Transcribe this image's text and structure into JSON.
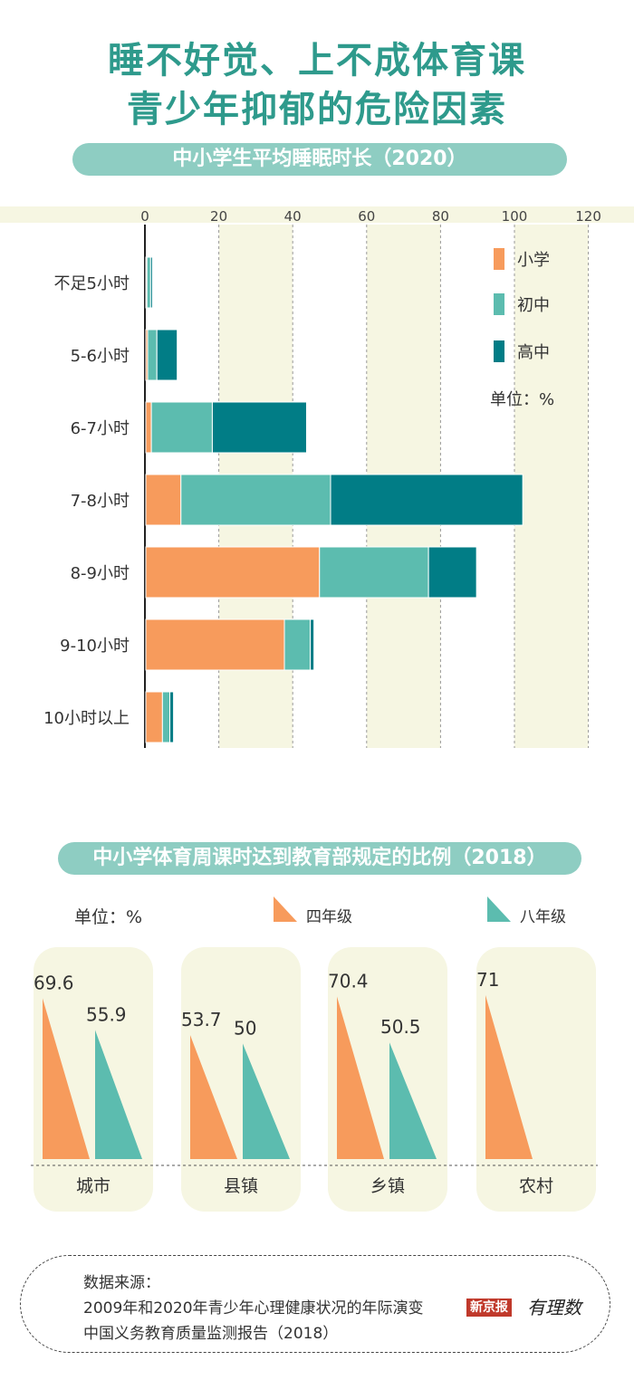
{
  "title": {
    "line1": "睡不好觉、上不成体育课",
    "line2": "青少年抑郁的危险因素"
  },
  "colors": {
    "title": "#2e9a8c",
    "pill": "#8ecdc2",
    "band": "#f6f6e2",
    "primary": "#f79b5c",
    "junior": "#5cbcaf",
    "senior": "#017d86",
    "grade4": "#f79b5c",
    "grade8": "#5cbcaf",
    "panel": "#f6f6e2"
  },
  "chart_data": [
    {
      "type": "bar",
      "orientation": "horizontal",
      "stacked": true,
      "title": "中小学生平均睡眠时长（2020）",
      "unit": "单位：%",
      "xlim": [
        0,
        120
      ],
      "xticks": [
        0,
        20,
        40,
        60,
        80,
        100,
        120
      ],
      "categories": [
        "不足5小时",
        "5-6小时",
        "6-7小时",
        "7-8小时",
        "8-9小时",
        "9-10小时",
        "10小时以上"
      ],
      "series": [
        {
          "name": "小学",
          "values": [
            0.3,
            0.5,
            1.5,
            9.5,
            47,
            37.5,
            4.5
          ]
        },
        {
          "name": "初中",
          "values": [
            1,
            2.5,
            16.5,
            40.5,
            29.5,
            7,
            2
          ]
        },
        {
          "name": "高中",
          "values": [
            0.5,
            5.5,
            25.5,
            52,
            13,
            1,
            1
          ]
        }
      ],
      "legend_position": "top-right"
    },
    {
      "type": "bar",
      "title": "中小学体育周课时达到教育部规定的比例（2018）",
      "unit": "单位：%",
      "ylim": [
        0,
        100
      ],
      "categories": [
        "城市",
        "县镇",
        "乡镇",
        "农村"
      ],
      "series": [
        {
          "name": "四年级",
          "values": [
            69.6,
            53.7,
            70.4,
            71
          ]
        },
        {
          "name": "八年级",
          "values": [
            55.9,
            50,
            50.5,
            null
          ]
        }
      ],
      "labels": [
        {
          "grade4": "69.6",
          "grade8": "55.9"
        },
        {
          "grade4": "53.7",
          "grade8": "50"
        },
        {
          "grade4": "70.4",
          "grade8": "50.5"
        },
        {
          "grade4": "71",
          "grade8": ""
        }
      ],
      "legend_position": "top"
    }
  ],
  "source": {
    "heading": "数据来源：",
    "line1": "2009年和2020年青少年心理健康状况的年际演变",
    "line2": "中国义务教育质量监测报告（2018）"
  },
  "logo": {
    "text": "新京报",
    "sub": "有理数"
  }
}
